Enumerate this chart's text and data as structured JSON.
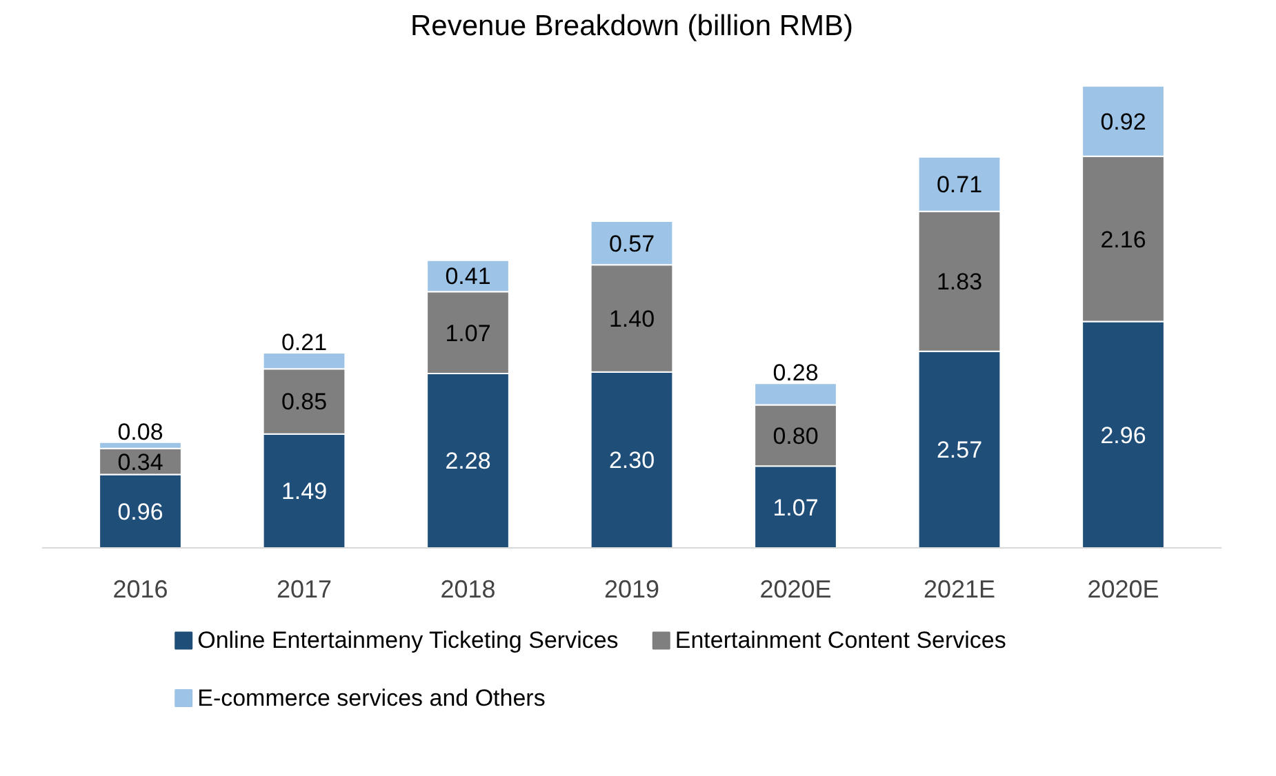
{
  "chart_data": {
    "type": "bar",
    "title": "Revenue Breakdown (billion RMB)",
    "stacked": true,
    "legend": "bottom",
    "grid": false,
    "categories": [
      "2016",
      "2017",
      "2018",
      "2019",
      "2020E",
      "2021E",
      "2020E"
    ],
    "series": [
      {
        "name": "Online Entertainmeny Ticketing Services",
        "color": "#1f4e79",
        "values": [
          0.96,
          1.49,
          2.28,
          2.3,
          1.07,
          2.57,
          2.96
        ],
        "value_labels": [
          "0.96",
          "1.49",
          "2.28",
          "2.30",
          "1.07",
          "2.57",
          "2.96"
        ]
      },
      {
        "name": "Entertainment Content Services",
        "color": "#7f7f7f",
        "values": [
          0.34,
          0.85,
          1.07,
          1.4,
          0.8,
          1.83,
          2.16
        ],
        "value_labels": [
          "0.34",
          "0.85",
          "1.07",
          "1.40",
          "0.80",
          "1.83",
          "2.16"
        ]
      },
      {
        "name": "E-commerce services and Others",
        "color": "#9dc3e6",
        "values": [
          0.08,
          0.21,
          0.41,
          0.57,
          0.28,
          0.71,
          0.92
        ],
        "value_labels": [
          "0.08",
          "0.21",
          "0.41",
          "0.57",
          "0.28",
          "0.71",
          "0.92"
        ]
      }
    ]
  }
}
